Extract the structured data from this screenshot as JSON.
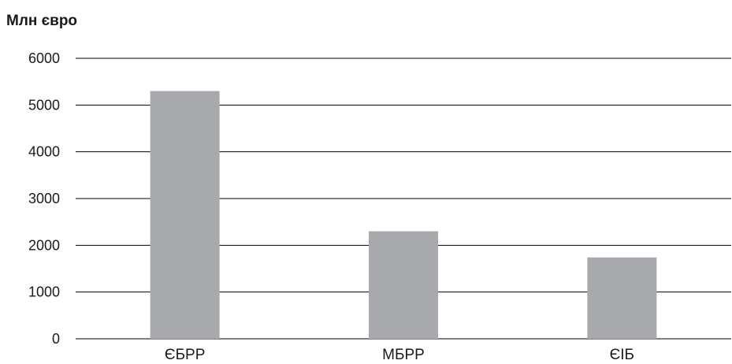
{
  "chart_data": {
    "type": "bar",
    "title": "",
    "xlabel": "",
    "ylabel": "Млн євро",
    "categories": [
      "ЄБРР",
      "МБРР",
      "ЄІБ"
    ],
    "values": [
      5300,
      2300,
      1740
    ],
    "ylim": [
      0,
      6000
    ],
    "yticks": [
      0,
      1000,
      2000,
      3000,
      4000,
      5000,
      6000
    ],
    "grid": true,
    "bar_color": "#a7a9ac",
    "grid_color": "#000000"
  }
}
